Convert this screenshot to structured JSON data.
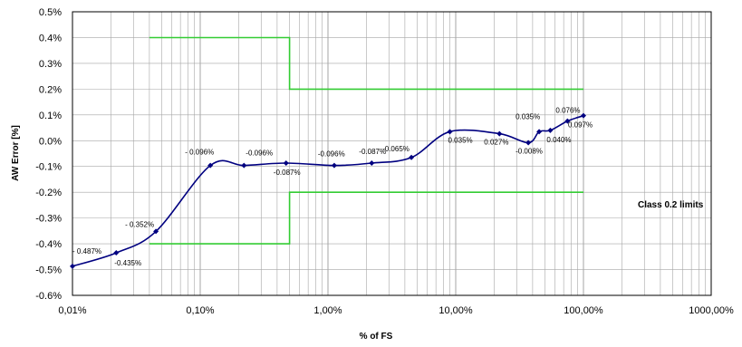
{
  "chart_data": {
    "type": "line",
    "x_scale": "log",
    "xlabel": "% of FS",
    "ylabel": "AW Error [%]",
    "xlim": [
      0.01,
      1000
    ],
    "ylim": [
      -0.6,
      0.5
    ],
    "grid": true,
    "x_ticks": [
      "0,01%",
      "0,10%",
      "1,00%",
      "10,00%",
      "100,00%",
      "1000,00%"
    ],
    "y_ticks": [
      "0.5%",
      "0.4%",
      "0.3%",
      "0.2%",
      "0.1%",
      "0.0%",
      "-0.1%",
      "-0.2%",
      "-0.3%",
      "-0.4%",
      "-0.5%",
      "-0.6%"
    ],
    "colors": {
      "series": "#000080",
      "limits": "#33cc33",
      "grid": "#a6a6a6"
    },
    "series": [
      {
        "x": [
          0.01,
          0.022,
          0.045,
          0.12,
          0.22,
          0.47,
          1.12,
          2.2,
          4.5,
          9,
          22,
          37,
          45,
          55,
          75,
          100
        ],
        "y": [
          -0.487,
          -0.435,
          -0.352,
          -0.096,
          -0.096,
          -0.087,
          -0.096,
          -0.087,
          -0.065,
          0.035,
          0.027,
          -0.008,
          0.035,
          0.04,
          0.076,
          0.097
        ],
        "labels": [
          "- 0.487%",
          "-0.435%",
          "- 0.352%",
          "- 0.096%",
          "-0.096%",
          "-0.087%",
          "-0.096%",
          "-0.087%",
          "-0.065%",
          "0.035%",
          "0.027%",
          "-0.008%",
          "0.035%",
          "0.040%",
          "0.076%",
          "0.097%"
        ]
      }
    ],
    "limits": {
      "annotation": "Class 0.2 limits",
      "upper": {
        "x": [
          0.04,
          0.5,
          0.5,
          100
        ],
        "y": [
          0.4,
          0.4,
          0.2,
          0.2
        ]
      },
      "lower": {
        "x": [
          0.04,
          0.5,
          0.5,
          100
        ],
        "y": [
          -0.4,
          -0.4,
          -0.2,
          -0.2
        ]
      }
    }
  }
}
